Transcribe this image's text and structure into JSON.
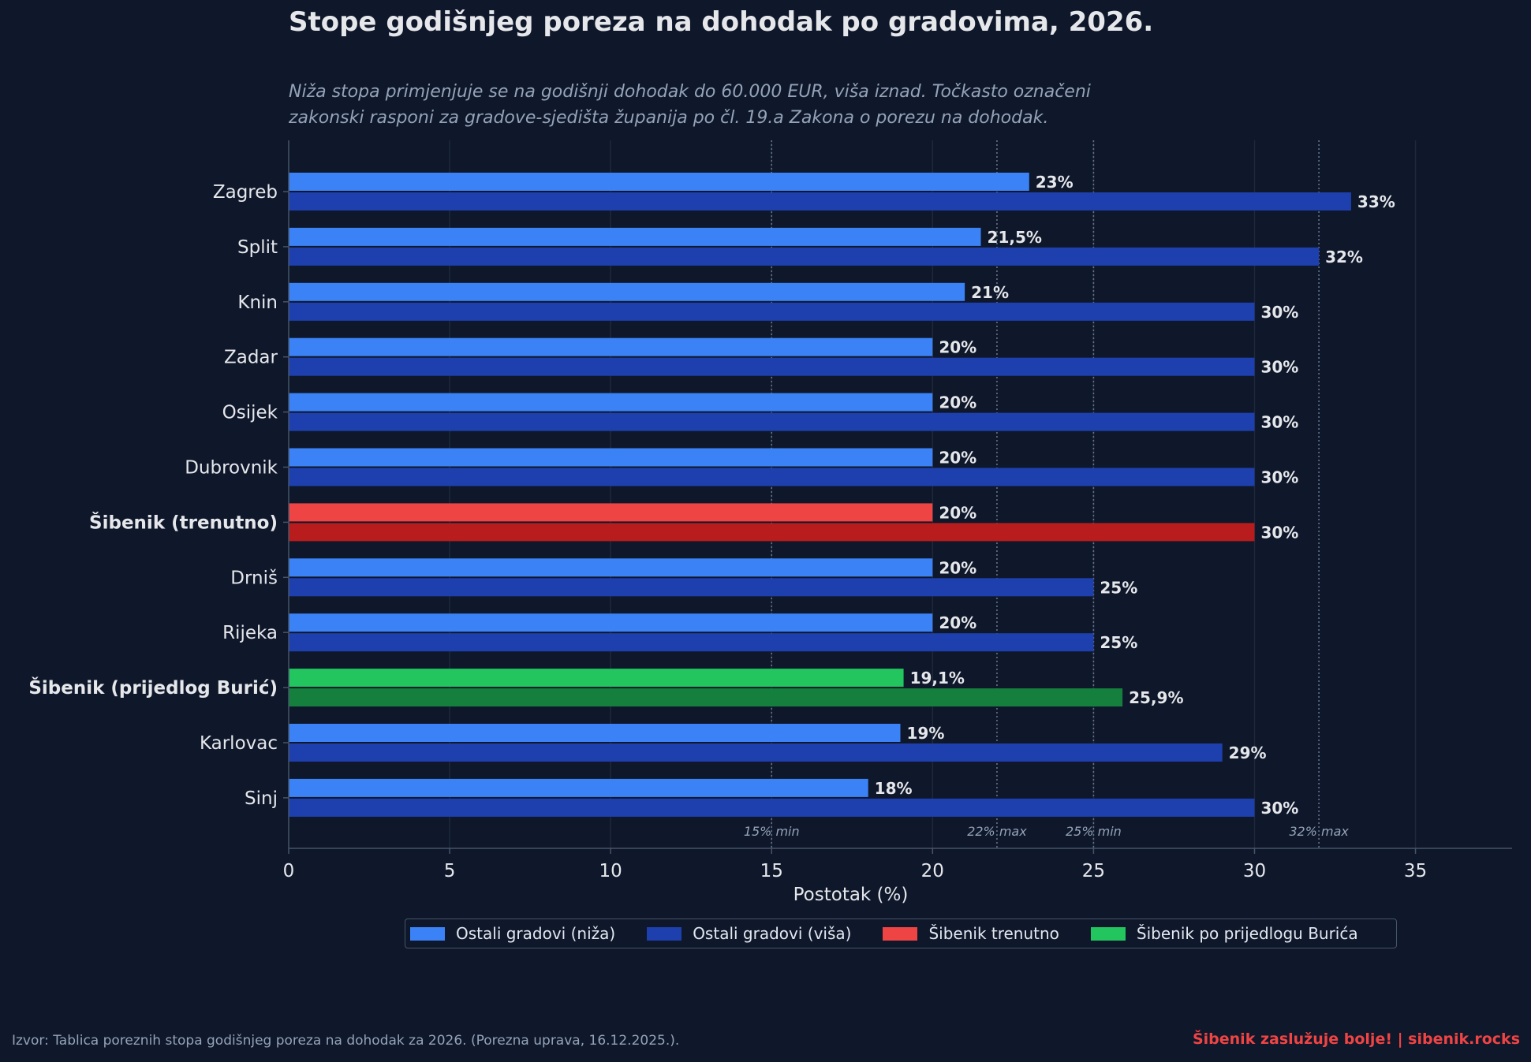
{
  "title": "Stope godišnjeg poreza na dohodak po gradovima, 2026.",
  "subtitle_line1": "Niža stopa primjenjuje se na godišnji dohodak do 60.000 EUR, viša iznad. Točkasto označeni",
  "subtitle_line2": "zakonski rasponi za gradove-sjedišta županija po čl. 19.a Zakona o porezu na dohodak.",
  "footer": {
    "source": "Izvor: Tablica poreznih stopa godišnjeg poreza na dohodak za 2026. (Porezna uprava, 16.12.2025.).",
    "brand": "Šibenik zaslužuje bolje!  |  sibenik.rocks"
  },
  "legend": [
    {
      "label": "Ostali gradovi (niža)",
      "color": "#3b82f6"
    },
    {
      "label": "Ostali gradovi (viša)",
      "color": "#1e40af"
    },
    {
      "label": "Šibenik trenutno",
      "color": "#ef4444"
    },
    {
      "label": "Šibenik po prijedlogu Burića",
      "color": "#22c55e"
    }
  ],
  "chart_data": {
    "type": "bar",
    "orientation": "horizontal",
    "xlabel": "Postotak (%)",
    "xlim": [
      0,
      38
    ],
    "xticks": [
      "0",
      "5",
      "10",
      "15",
      "20",
      "25",
      "30",
      "35"
    ],
    "categories": [
      "Zagreb",
      "Split",
      "Knin",
      "Zadar",
      "Osijek",
      "Dubrovnik",
      "Šibenik (trenutno)",
      "Drniš",
      "Rijeka",
      "Šibenik (prijedlog Burić)",
      "Karlovac",
      "Sinj"
    ],
    "bold_categories": [
      "Šibenik (trenutno)",
      "Šibenik (prijedlog Burić)"
    ],
    "series": [
      {
        "name": "Ostali gradovi (niža)",
        "values": [
          23,
          21.5,
          21,
          20,
          20,
          20,
          20,
          20,
          20,
          19.1,
          19,
          18
        ],
        "labels": [
          "23%",
          "21,5%",
          "21%",
          "20%",
          "20%",
          "20%",
          "20%",
          "20%",
          "20%",
          "19,1%",
          "19%",
          "18%"
        ]
      },
      {
        "name": "Ostali gradovi (viša)",
        "values": [
          33,
          32,
          30,
          30,
          30,
          30,
          30,
          25,
          25,
          25.9,
          29,
          30
        ],
        "labels": [
          "33%",
          "32%",
          "30%",
          "30%",
          "30%",
          "30%",
          "30%",
          "25%",
          "25%",
          "25,9%",
          "29%",
          "30%"
        ]
      }
    ],
    "highlight_colors": {
      "Šibenik (trenutno)": {
        "lower": "#ef4444",
        "higher": "#b91c1c"
      },
      "Šibenik (prijedlog Burić)": {
        "lower": "#22c55e",
        "higher": "#15803d"
      }
    },
    "default_colors": {
      "lower": "#3b82f6",
      "higher": "#1e40af"
    },
    "reference_lines": [
      {
        "x": 15,
        "label": "15% min"
      },
      {
        "x": 22,
        "label": "22% max"
      },
      {
        "x": 25,
        "label": "25% min"
      },
      {
        "x": 32,
        "label": "32% max"
      }
    ],
    "grid": true,
    "legend_position": "bottom"
  }
}
